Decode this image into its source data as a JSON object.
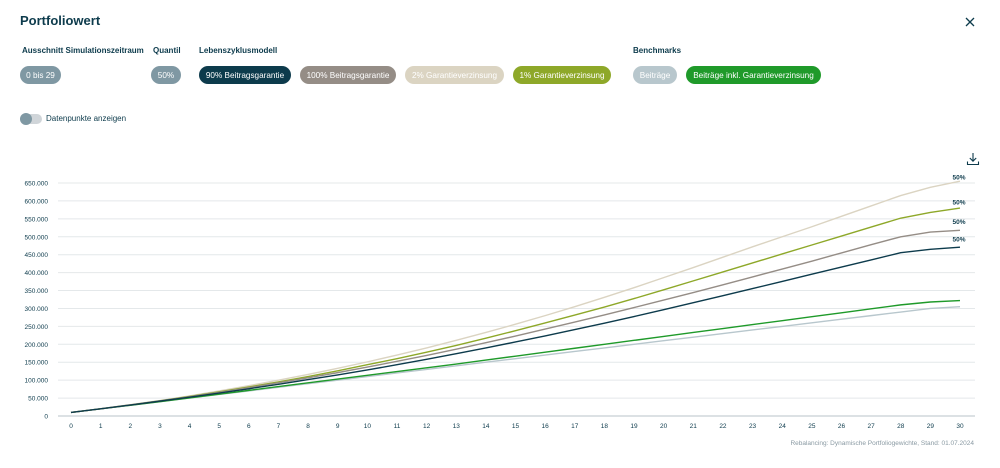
{
  "header": {
    "title": "Portfoliowert",
    "close_icon": "close-icon"
  },
  "filters": {
    "zeitraum": {
      "label": "Ausschnitt Simulationszeitraum",
      "chip": "0 bis 29"
    },
    "quantil": {
      "label": "Quantil",
      "chip": "50%"
    },
    "lebenszyklus": {
      "label": "Lebenszyklusmodell",
      "chips": [
        "90% Beitragsgarantie",
        "100% Beitragsgarantie",
        "2% Garantieverzinsung",
        "1% Garantieverzinsung"
      ]
    },
    "benchmarks": {
      "label": "Benchmarks",
      "chips": [
        "Beiträge",
        "Beiträge inkl. Garantieverzinsung"
      ]
    }
  },
  "toggle": {
    "label": "Datenpunkte anzeigen",
    "on": false
  },
  "colors": {
    "navy": "#0d3b4c",
    "taupe": "#958d86",
    "beige": "#dbd4c2",
    "olive": "#8ea829",
    "slate": "#7f98a3",
    "lightslate": "#b8c7cd",
    "green": "#1f9a2a"
  },
  "chart_data": {
    "type": "line",
    "x": [
      0,
      1,
      2,
      3,
      4,
      5,
      6,
      7,
      8,
      9,
      10,
      11,
      12,
      13,
      14,
      15,
      16,
      17,
      18,
      19,
      20,
      21,
      22,
      23,
      24,
      25,
      26,
      27,
      28,
      29,
      30
    ],
    "ylim": [
      0,
      650000
    ],
    "yticks": [
      "0",
      "50.000",
      "100.000",
      "150.000",
      "200.000",
      "250.000",
      "300.000",
      "350.000",
      "400.000",
      "450.000",
      "500.000",
      "550.000",
      "600.000",
      "650.000"
    ],
    "series": [
      {
        "name": "2% Garantieverzinsung",
        "color": "#dbd4c2",
        "end_label": "50%",
        "values": [
          10000,
          20500,
          31500,
          43000,
          56000,
          70000,
          84500,
          100000,
          116000,
          133000,
          151000,
          170000,
          190000,
          211000,
          233000,
          256000,
          280000,
          305000,
          331000,
          358000,
          386000,
          414000,
          443000,
          472000,
          500000,
          528000,
          557000,
          586000,
          615000,
          638000,
          655000
        ]
      },
      {
        "name": "1% Garantieverzinsung",
        "color": "#8ea829",
        "end_label": "50%",
        "values": [
          10000,
          20200,
          31000,
          42500,
          54500,
          67500,
          81000,
          95000,
          110000,
          126000,
          143000,
          160000,
          178000,
          197000,
          217000,
          238000,
          259500,
          281500,
          304000,
          327500,
          352000,
          377000,
          402000,
          427000,
          452000,
          477000,
          502000,
          527000,
          552000,
          568000,
          580000
        ]
      },
      {
        "name": "100% Beitragsgarantie",
        "color": "#958d86",
        "end_label": "50%",
        "values": [
          10000,
          20000,
          30800,
          42000,
          53500,
          66000,
          79000,
          92500,
          106500,
          121000,
          136500,
          152500,
          169000,
          186500,
          204500,
          223000,
          242500,
          262000,
          282000,
          302500,
          323500,
          344500,
          366000,
          388000,
          410000,
          432000,
          455000,
          478000,
          500000,
          513000,
          518000
        ]
      },
      {
        "name": "90% Beitragsgarantie",
        "color": "#0d3b4c",
        "end_label": "50%",
        "values": [
          10000,
          20000,
          30500,
          41500,
          52500,
          64000,
          76000,
          88500,
          101500,
          114500,
          128500,
          143000,
          158000,
          174000,
          190000,
          206500,
          223500,
          241000,
          259000,
          277500,
          296500,
          316000,
          335500,
          355500,
          375500,
          395500,
          415500,
          435500,
          455500,
          465000,
          471000
        ]
      },
      {
        "name": "Beiträge inkl. Garantieverzinsung",
        "color": "#1f9a2a",
        "end_label": "",
        "values": [
          10000,
          20000,
          30000,
          40000,
          50500,
          61000,
          71500,
          82000,
          92500,
          103000,
          113500,
          124000,
          134500,
          145000,
          156000,
          167000,
          178000,
          189000,
          200000,
          211000,
          222000,
          233000,
          244000,
          255000,
          266000,
          277000,
          288000,
          299000,
          310000,
          318000,
          322000
        ]
      },
      {
        "name": "Beiträge",
        "color": "#b8c7cd",
        "end_label": "",
        "values": [
          10000,
          20000,
          30000,
          40000,
          50000,
          60000,
          70000,
          80000,
          90000,
          100000,
          110000,
          120000,
          130000,
          140000,
          150000,
          160000,
          170000,
          180000,
          190000,
          200000,
          210000,
          220000,
          230000,
          240000,
          250000,
          260000,
          270000,
          280000,
          290000,
          300000,
          305000
        ]
      }
    ]
  },
  "footer": {
    "text": "Rebalancing: Dynamische Portfoliogewichte, Stand: 01.07.2024"
  },
  "download_icon": "download-icon"
}
